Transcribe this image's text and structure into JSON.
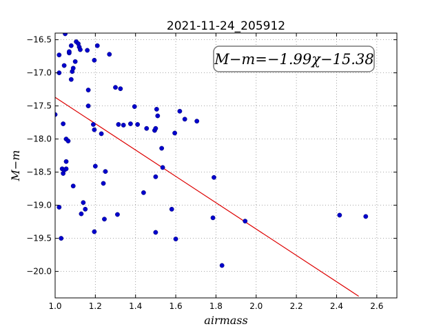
{
  "chart_data": {
    "type": "scatter",
    "title": "2021-11-24_205912",
    "xlabel": "airmass",
    "ylabel": "M−m",
    "xlim": [
      1.0,
      2.7
    ],
    "ylim": [
      -20.4,
      -16.4
    ],
    "y_inverted": true,
    "grid": true,
    "grid_style": "dotted",
    "xticks": [
      "1.0",
      "1.2",
      "1.4",
      "1.6",
      "1.8",
      "2.0",
      "2.2",
      "2.4",
      "2.6"
    ],
    "yticks": [
      "−16.5",
      "−17.0",
      "−17.5",
      "−18.0",
      "−18.5",
      "−19.0",
      "−19.5",
      "−20.0"
    ],
    "annotation": "M−m=−1.99χ−15.38",
    "fit": {
      "slope": -1.99,
      "intercept": -15.38,
      "x_range": [
        1.0,
        2.51
      ]
    },
    "colors": {
      "points": "#0000cc",
      "fit_line": "#dd0000",
      "grid": "#888888"
    },
    "points": [
      [
        1.0,
        -17.63
      ],
      [
        1.02,
        -17.0
      ],
      [
        1.02,
        -16.73
      ],
      [
        1.02,
        -19.03
      ],
      [
        1.03,
        -19.5
      ],
      [
        1.035,
        -18.45
      ],
      [
        1.04,
        -18.52
      ],
      [
        1.045,
        -18.47
      ],
      [
        1.04,
        -17.77
      ],
      [
        1.045,
        -16.89
      ],
      [
        1.05,
        -16.41
      ],
      [
        1.055,
        -18.34
      ],
      [
        1.055,
        -18.45
      ],
      [
        1.055,
        -18.0
      ],
      [
        1.065,
        -18.03
      ],
      [
        1.07,
        -16.7
      ],
      [
        1.07,
        -16.68
      ],
      [
        1.08,
        -16.59
      ],
      [
        1.08,
        -17.1
      ],
      [
        1.085,
        -16.98
      ],
      [
        1.09,
        -16.93
      ],
      [
        1.09,
        -18.71
      ],
      [
        1.1,
        -16.83
      ],
      [
        1.105,
        -16.53
      ],
      [
        1.115,
        -16.56
      ],
      [
        1.12,
        -16.61
      ],
      [
        1.125,
        -16.65
      ],
      [
        1.13,
        -19.13
      ],
      [
        1.14,
        -18.96
      ],
      [
        1.15,
        -19.06
      ],
      [
        1.16,
        -16.66
      ],
      [
        1.165,
        -17.26
      ],
      [
        1.165,
        -17.5
      ],
      [
        1.19,
        -17.78
      ],
      [
        1.195,
        -17.86
      ],
      [
        1.195,
        -16.81
      ],
      [
        1.195,
        -19.4
      ],
      [
        1.2,
        -18.41
      ],
      [
        1.21,
        -16.59
      ],
      [
        1.23,
        -17.92
      ],
      [
        1.24,
        -18.67
      ],
      [
        1.245,
        -19.21
      ],
      [
        1.25,
        -18.49
      ],
      [
        1.27,
        -16.72
      ],
      [
        1.3,
        -17.22
      ],
      [
        1.31,
        -19.14
      ],
      [
        1.315,
        -17.78
      ],
      [
        1.325,
        -17.24
      ],
      [
        1.34,
        -17.79
      ],
      [
        1.375,
        -17.77
      ],
      [
        1.395,
        -17.51
      ],
      [
        1.41,
        -17.78
      ],
      [
        1.44,
        -18.81
      ],
      [
        1.455,
        -17.84
      ],
      [
        1.495,
        -17.87
      ],
      [
        1.5,
        -17.84
      ],
      [
        1.5,
        -19.41
      ],
      [
        1.5,
        -18.57
      ],
      [
        1.505,
        -17.55
      ],
      [
        1.51,
        -17.65
      ],
      [
        1.53,
        -18.14
      ],
      [
        1.535,
        -18.43
      ],
      [
        1.58,
        -19.06
      ],
      [
        1.595,
        -17.91
      ],
      [
        1.6,
        -19.51
      ],
      [
        1.62,
        -17.58
      ],
      [
        1.645,
        -17.7
      ],
      [
        1.705,
        -17.73
      ],
      [
        1.785,
        -19.19
      ],
      [
        1.79,
        -18.58
      ],
      [
        1.83,
        -19.91
      ],
      [
        1.945,
        -19.24
      ],
      [
        2.415,
        -19.15
      ],
      [
        2.545,
        -19.17
      ]
    ]
  }
}
